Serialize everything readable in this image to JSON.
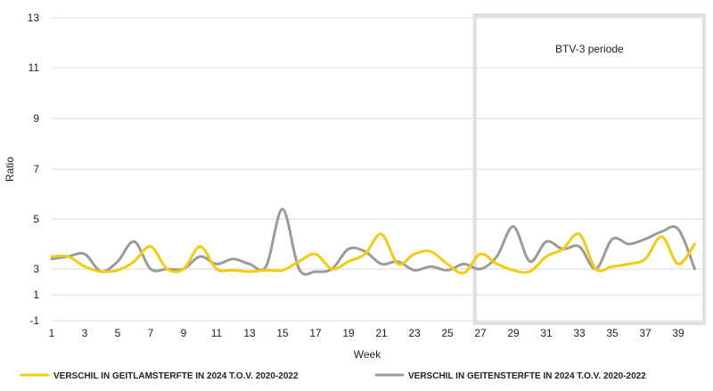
{
  "chart_data": {
    "type": "line",
    "xlabel": "Week",
    "ylabel": "Ratio",
    "y_ticks": [
      -1,
      1,
      3,
      5,
      7,
      9,
      11,
      13
    ],
    "ylim": [
      -1,
      13
    ],
    "x_ticks": [
      1,
      3,
      5,
      7,
      9,
      11,
      13,
      15,
      17,
      19,
      21,
      23,
      25,
      27,
      29,
      31,
      33,
      35,
      37,
      39
    ],
    "xlim": [
      1,
      41
    ],
    "grid": "horizontal",
    "legend_position": "bottom",
    "annotation": {
      "label": "BTV-3 periode",
      "x_start": 26.5,
      "x_end": 41,
      "color": "#e0e0e0"
    },
    "series": [
      {
        "name": "VERSCHIL IN GEITLAMSTERFTE IN 2024 T.O.V. 2020-2022",
        "color": "#f5cc0a",
        "x": [
          1,
          2,
          3,
          4,
          5,
          6,
          7,
          8,
          9,
          10,
          11,
          12,
          13,
          14,
          15,
          16,
          17,
          18,
          19,
          20,
          21,
          22,
          23,
          24,
          25,
          26,
          27,
          28,
          29,
          30,
          31,
          32,
          33,
          34,
          35,
          36,
          37,
          38,
          39,
          40
        ],
        "values": [
          3.5,
          3.5,
          3.1,
          2.8,
          2.9,
          3.3,
          3.9,
          3.0,
          3.0,
          3.9,
          3.0,
          2.9,
          2.8,
          2.9,
          2.9,
          3.3,
          3.6,
          3.0,
          3.3,
          3.6,
          4.4,
          3.2,
          3.6,
          3.7,
          3.2,
          2.7,
          3.6,
          3.2,
          2.9,
          2.8,
          3.5,
          3.8,
          4.4,
          3.0,
          3.1,
          3.2,
          3.4,
          4.3,
          3.2,
          4.0
        ]
      },
      {
        "name": "VERSCHIL IN GEITENSTERFTE IN 2024 T.O.V. 2020-2022",
        "color": "#9b9b9b",
        "x": [
          1,
          2,
          3,
          4,
          5,
          6,
          7,
          8,
          9,
          10,
          11,
          12,
          13,
          14,
          15,
          16,
          17,
          18,
          19,
          20,
          21,
          22,
          23,
          24,
          25,
          26,
          27,
          28,
          29,
          30,
          31,
          32,
          33,
          34,
          35,
          36,
          37,
          38,
          39,
          40
        ],
        "values": [
          3.4,
          3.5,
          3.6,
          2.8,
          3.3,
          4.1,
          3.0,
          3.0,
          3.0,
          3.5,
          3.2,
          3.4,
          3.2,
          3.1,
          5.4,
          3.0,
          2.8,
          3.0,
          3.8,
          3.7,
          3.2,
          3.3,
          2.9,
          3.1,
          2.9,
          3.2,
          3.0,
          3.5,
          4.7,
          3.3,
          4.1,
          3.8,
          3.9,
          3.0,
          4.2,
          4.0,
          4.2,
          4.5,
          4.6,
          3.0
        ]
      }
    ]
  }
}
